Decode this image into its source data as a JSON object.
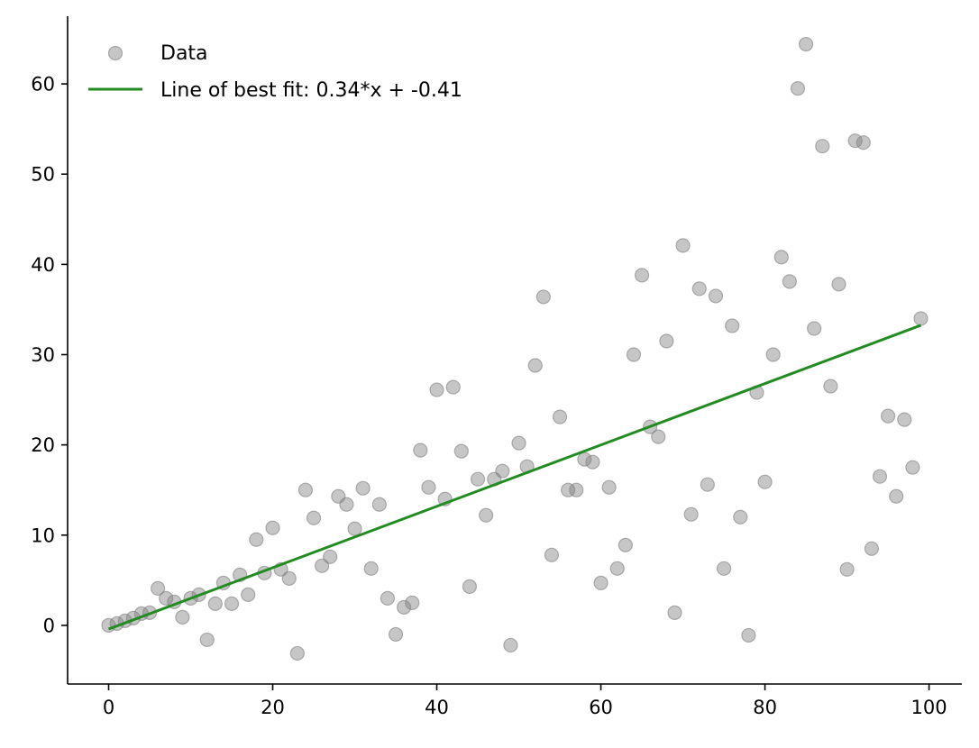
{
  "chart_data": {
    "type": "scatter",
    "title": "",
    "xlabel": "",
    "ylabel": "",
    "xlim": [
      -5,
      104
    ],
    "ylim": [
      -6.5,
      67.5
    ],
    "xticks": [
      0,
      20,
      40,
      60,
      80,
      100
    ],
    "yticks": [
      0,
      10,
      20,
      30,
      40,
      50,
      60
    ],
    "xtick_labels": [
      "0",
      "20",
      "40",
      "60",
      "80",
      "100"
    ],
    "ytick_labels": [
      "0",
      "10",
      "20",
      "30",
      "40",
      "50",
      "60"
    ],
    "grid": false,
    "legend_position": "top-left",
    "series": [
      {
        "name": "Data",
        "kind": "scatter",
        "color": "#808080",
        "x": [
          0,
          1,
          2,
          3,
          4,
          5,
          6,
          7,
          8,
          9,
          10,
          11,
          12,
          13,
          14,
          15,
          16,
          17,
          18,
          19,
          20,
          21,
          22,
          23,
          24,
          25,
          26,
          27,
          28,
          29,
          30,
          31,
          32,
          33,
          34,
          35,
          36,
          37,
          38,
          39,
          40,
          41,
          42,
          43,
          44,
          45,
          46,
          47,
          48,
          49,
          50,
          51,
          52,
          53,
          54,
          55,
          56,
          57,
          58,
          59,
          60,
          61,
          62,
          63,
          64,
          65,
          66,
          67,
          68,
          69,
          70,
          71,
          72,
          73,
          74,
          75,
          76,
          77,
          78,
          79,
          80,
          81,
          82,
          83,
          84,
          85,
          86,
          87,
          88,
          89,
          90,
          91,
          92,
          93,
          94,
          95,
          96,
          97,
          98,
          99
        ],
        "y": [
          0.0,
          0.2,
          0.5,
          0.8,
          1.3,
          1.4,
          4.1,
          3.0,
          2.6,
          0.9,
          3.0,
          3.4,
          -1.6,
          2.4,
          4.7,
          2.4,
          5.6,
          3.4,
          9.5,
          5.8,
          10.8,
          6.2,
          5.2,
          -3.1,
          15.0,
          11.9,
          6.6,
          7.6,
          14.3,
          13.4,
          10.7,
          15.2,
          6.3,
          13.4,
          3.0,
          -1.0,
          2.0,
          2.5,
          19.4,
          15.3,
          26.1,
          14.0,
          26.4,
          19.3,
          4.3,
          16.2,
          12.2,
          16.2,
          17.1,
          -2.2,
          20.2,
          17.6,
          28.8,
          36.4,
          7.8,
          23.1,
          15.0,
          15.0,
          18.4,
          18.1,
          4.7,
          15.3,
          6.3,
          8.9,
          30.0,
          38.8,
          22.0,
          20.9,
          31.5,
          1.4,
          42.1,
          12.3,
          37.3,
          15.6,
          36.5,
          6.3,
          33.2,
          12.0,
          -1.1,
          25.8,
          15.9,
          30.0,
          40.8,
          38.1,
          59.5,
          64.4,
          32.9,
          53.1,
          26.5,
          37.8,
          6.2,
          53.7,
          53.5,
          8.5,
          16.5,
          23.2,
          14.3,
          22.8,
          17.5,
          34.0
        ]
      },
      {
        "name": "Line of best fit: 0.34*x + -0.41",
        "kind": "line",
        "color": "#228b22",
        "slope": 0.34,
        "intercept": -0.41,
        "x_range": [
          0,
          99
        ]
      }
    ]
  }
}
